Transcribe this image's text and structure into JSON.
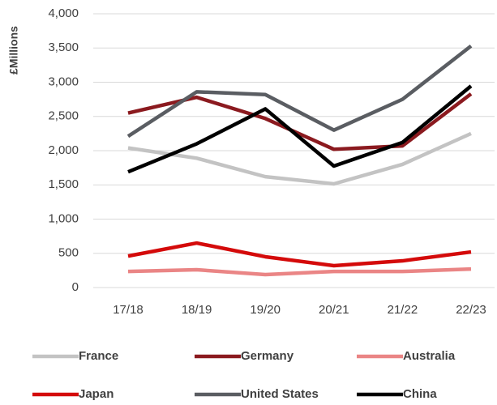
{
  "chart_data": {
    "type": "line",
    "y_label": "£Millions",
    "categories": [
      "17/18",
      "18/19",
      "19/20",
      "20/21",
      "21/22",
      "22/23"
    ],
    "series": [
      {
        "name": "France",
        "color": "#c3c3c3",
        "values": [
          2040,
          1890,
          1620,
          1515,
          1800,
          2250
        ]
      },
      {
        "name": "Germany",
        "color": "#8b1a1f",
        "values": [
          2550,
          2780,
          2470,
          2020,
          2070,
          2830
        ]
      },
      {
        "name": "Australia",
        "color": "#ea8585",
        "values": [
          235,
          260,
          190,
          235,
          235,
          270
        ]
      },
      {
        "name": "Japan",
        "color": "#d40a0a",
        "values": [
          460,
          650,
          450,
          320,
          390,
          520
        ]
      },
      {
        "name": "United States",
        "color": "#5a5d62",
        "values": [
          2210,
          2860,
          2820,
          2300,
          2750,
          3530
        ]
      },
      {
        "name": "China",
        "color": "#000000",
        "values": [
          1690,
          2100,
          2610,
          1775,
          2120,
          2945
        ]
      }
    ],
    "ylim": [
      0,
      4000
    ],
    "yticks": [
      0,
      500,
      {
        "value": 1000,
        "label": "1,000"
      },
      {
        "value": 1500,
        "label": "1,500"
      },
      {
        "value": 2000,
        "label": "2,000"
      },
      {
        "value": 2500,
        "label": "2,500"
      },
      {
        "value": 3000,
        "label": "3,000"
      },
      {
        "value": 3500,
        "label": "3,500"
      },
      {
        "value": 4000,
        "label": "4,000"
      }
    ],
    "grid": true,
    "legend": "bottom"
  }
}
